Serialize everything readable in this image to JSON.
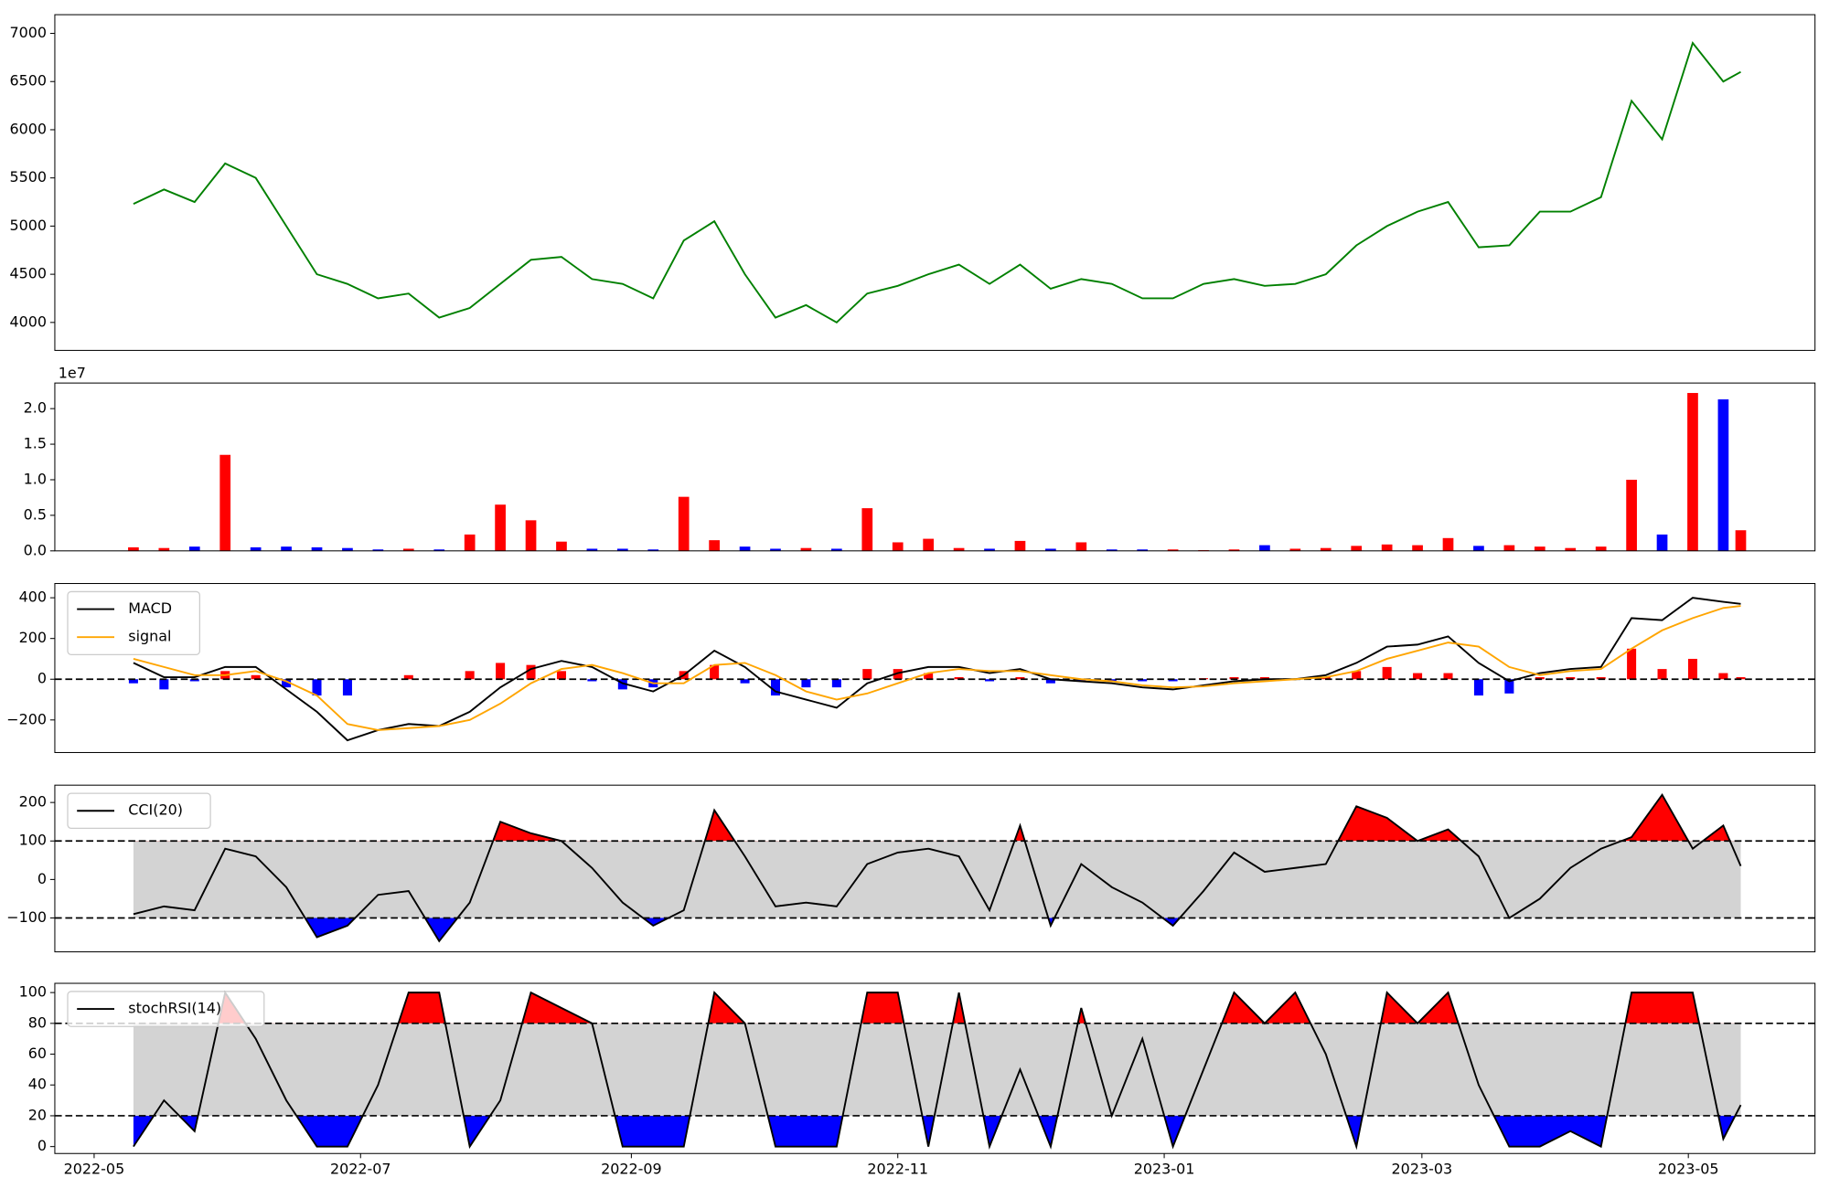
{
  "chart_data": [
    {
      "type": "line",
      "color": "#008000",
      "x": [
        "2022-05-10",
        "2022-05-17",
        "2022-05-24",
        "2022-05-31",
        "2022-06-07",
        "2022-06-14",
        "2022-06-21",
        "2022-06-28",
        "2022-07-05",
        "2022-07-12",
        "2022-07-19",
        "2022-07-26",
        "2022-08-02",
        "2022-08-09",
        "2022-08-16",
        "2022-08-23",
        "2022-08-30",
        "2022-09-06",
        "2022-09-13",
        "2022-09-20",
        "2022-09-27",
        "2022-10-04",
        "2022-10-11",
        "2022-10-18",
        "2022-10-25",
        "2022-11-01",
        "2022-11-08",
        "2022-11-15",
        "2022-11-22",
        "2022-11-29",
        "2022-12-06",
        "2022-12-13",
        "2022-12-20",
        "2022-12-27",
        "2023-01-03",
        "2023-01-10",
        "2023-01-17",
        "2023-01-24",
        "2023-01-31",
        "2023-02-07",
        "2023-02-14",
        "2023-02-21",
        "2023-02-28",
        "2023-03-07",
        "2023-03-14",
        "2023-03-21",
        "2023-03-28",
        "2023-04-04",
        "2023-04-11",
        "2023-04-18",
        "2023-04-25",
        "2023-05-02",
        "2023-05-09",
        "2023-05-13"
      ],
      "values": [
        5230,
        5380,
        5250,
        5650,
        5500,
        5000,
        4500,
        4400,
        4250,
        4300,
        4050,
        4150,
        4400,
        4650,
        4680,
        4450,
        4400,
        4250,
        4850,
        5050,
        4500,
        4050,
        4180,
        4000,
        4300,
        4380,
        4500,
        4600,
        4400,
        4600,
        4350,
        4450,
        4400,
        4250,
        4250,
        4400,
        4450,
        4380,
        4400,
        4500,
        4800,
        5000,
        5150,
        5250,
        4780,
        4800,
        5150,
        5150,
        5300,
        6300,
        5900,
        6900,
        6500,
        6600
      ],
      "xlim": [
        "2022-04-22",
        "2023-05-30"
      ],
      "ylim": [
        3710,
        7194
      ],
      "yticks": [
        4000,
        4500,
        5000,
        5500,
        6000,
        6500,
        7000
      ]
    },
    {
      "type": "bar",
      "offset_label": "1e7",
      "x": [
        "2022-05-10",
        "2022-05-17",
        "2022-05-24",
        "2022-05-31",
        "2022-06-07",
        "2022-06-14",
        "2022-06-21",
        "2022-06-28",
        "2022-07-05",
        "2022-07-12",
        "2022-07-19",
        "2022-07-26",
        "2022-08-02",
        "2022-08-09",
        "2022-08-16",
        "2022-08-23",
        "2022-08-30",
        "2022-09-06",
        "2022-09-13",
        "2022-09-20",
        "2022-09-27",
        "2022-10-04",
        "2022-10-11",
        "2022-10-18",
        "2022-10-25",
        "2022-11-01",
        "2022-11-08",
        "2022-11-15",
        "2022-11-22",
        "2022-11-29",
        "2022-12-06",
        "2022-12-13",
        "2022-12-20",
        "2022-12-27",
        "2023-01-03",
        "2023-01-10",
        "2023-01-17",
        "2023-01-24",
        "2023-01-31",
        "2023-02-07",
        "2023-02-14",
        "2023-02-21",
        "2023-02-28",
        "2023-03-07",
        "2023-03-14",
        "2023-03-21",
        "2023-03-28",
        "2023-04-04",
        "2023-04-11",
        "2023-04-18",
        "2023-04-25",
        "2023-05-02",
        "2023-05-09",
        "2023-05-13"
      ],
      "values": [
        500000,
        400000,
        600000,
        13500000,
        500000,
        600000,
        500000,
        400000,
        200000,
        300000,
        200000,
        2300000,
        6500000,
        4300000,
        1300000,
        300000,
        300000,
        200000,
        7600000,
        1500000,
        600000,
        300000,
        400000,
        300000,
        6000000,
        1200000,
        1700000,
        400000,
        300000,
        1400000,
        300000,
        1200000,
        200000,
        200000,
        200000,
        100000,
        200000,
        800000,
        300000,
        400000,
        700000,
        900000,
        800000,
        1800000,
        700000,
        800000,
        600000,
        400000,
        600000,
        10000000,
        2300000,
        22200000,
        21300000,
        2900000
      ],
      "colors": [
        "red",
        "red",
        "blue",
        "red",
        "blue",
        "blue",
        "blue",
        "blue",
        "blue",
        "red",
        "blue",
        "red",
        "red",
        "red",
        "red",
        "blue",
        "blue",
        "blue",
        "red",
        "red",
        "blue",
        "blue",
        "red",
        "blue",
        "red",
        "red",
        "red",
        "red",
        "blue",
        "red",
        "blue",
        "red",
        "blue",
        "blue",
        "red",
        "red",
        "red",
        "blue",
        "red",
        "red",
        "red",
        "red",
        "red",
        "red",
        "blue",
        "red",
        "red",
        "red",
        "red",
        "red",
        "blue",
        "red",
        "blue",
        "red"
      ],
      "xlim": [
        "2022-04-22",
        "2023-05-30"
      ],
      "ylim": [
        0,
        23600000
      ],
      "yticks": [
        {
          "value": 0,
          "label": "0.0"
        },
        {
          "value": 5000000,
          "label": "0.5"
        },
        {
          "value": 10000000,
          "label": "1.0"
        },
        {
          "value": 15000000,
          "label": "1.5"
        },
        {
          "value": 20000000,
          "label": "2.0"
        }
      ]
    },
    {
      "type": "macd",
      "legend": "upper left",
      "hline": 0,
      "x": [
        "2022-05-10",
        "2022-05-17",
        "2022-05-24",
        "2022-05-31",
        "2022-06-07",
        "2022-06-14",
        "2022-06-21",
        "2022-06-28",
        "2022-07-05",
        "2022-07-12",
        "2022-07-19",
        "2022-07-26",
        "2022-08-02",
        "2022-08-09",
        "2022-08-16",
        "2022-08-23",
        "2022-08-30",
        "2022-09-06",
        "2022-09-13",
        "2022-09-20",
        "2022-09-27",
        "2022-10-04",
        "2022-10-11",
        "2022-10-18",
        "2022-10-25",
        "2022-11-01",
        "2022-11-08",
        "2022-11-15",
        "2022-11-22",
        "2022-11-29",
        "2022-12-06",
        "2022-12-13",
        "2022-12-20",
        "2022-12-27",
        "2023-01-03",
        "2023-01-10",
        "2023-01-17",
        "2023-01-24",
        "2023-01-31",
        "2023-02-07",
        "2023-02-14",
        "2023-02-21",
        "2023-02-28",
        "2023-03-07",
        "2023-03-14",
        "2023-03-21",
        "2023-03-28",
        "2023-04-04",
        "2023-04-11",
        "2023-04-18",
        "2023-04-25",
        "2023-05-02",
        "2023-05-09",
        "2023-05-13"
      ],
      "series": [
        {
          "name": "MACD",
          "color": "#000000",
          "values": [
            80,
            10,
            10,
            60,
            60,
            -50,
            -160,
            -300,
            -250,
            -220,
            -230,
            -160,
            -40,
            50,
            90,
            60,
            -20,
            -60,
            20,
            140,
            60,
            -60,
            -100,
            -140,
            -20,
            30,
            60,
            60,
            30,
            50,
            0,
            -10,
            -20,
            -40,
            -50,
            -30,
            -10,
            0,
            0,
            20,
            80,
            160,
            170,
            210,
            80,
            -10,
            30,
            50,
            60,
            300,
            290,
            400,
            380,
            370
          ]
        },
        {
          "name": "signal",
          "color": "#ffa500",
          "values": [
            100,
            60,
            20,
            20,
            40,
            -10,
            -80,
            -220,
            -250,
            -240,
            -230,
            -200,
            -120,
            -20,
            50,
            70,
            30,
            -20,
            -20,
            70,
            80,
            20,
            -60,
            -100,
            -70,
            -20,
            30,
            50,
            40,
            40,
            20,
            0,
            -10,
            -30,
            -40,
            -35,
            -20,
            -10,
            0,
            10,
            40,
            100,
            140,
            180,
            160,
            60,
            20,
            40,
            50,
            150,
            240,
            300,
            350,
            360
          ]
        }
      ],
      "histogram": {
        "pos_color": "#ff0000",
        "neg_color": "#0000ff",
        "values": [
          -20,
          -50,
          -10,
          40,
          20,
          -40,
          -80,
          -80,
          0,
          20,
          0,
          40,
          80,
          70,
          40,
          -10,
          -50,
          -40,
          40,
          70,
          -20,
          -80,
          -40,
          -40,
          50,
          50,
          30,
          10,
          -10,
          10,
          -20,
          -10,
          -10,
          -10,
          -10,
          5,
          10,
          10,
          0,
          10,
          40,
          60,
          30,
          30,
          -80,
          -70,
          10,
          10,
          10,
          150,
          50,
          100,
          30,
          10
        ]
      },
      "xlim": [
        "2022-04-22",
        "2023-05-30"
      ],
      "ylim": [
        -360,
        470
      ],
      "yticks": [
        {
          "value": -200,
          "label": "−200"
        },
        0,
        200,
        400
      ]
    },
    {
      "type": "oscillator",
      "legend": "upper left",
      "thresholds": [
        -100,
        100
      ],
      "band_color": "#d3d3d3",
      "upper_color": "#ff0000",
      "lower_color": "#0000ff",
      "x": [
        "2022-05-10",
        "2022-05-17",
        "2022-05-24",
        "2022-05-31",
        "2022-06-07",
        "2022-06-14",
        "2022-06-21",
        "2022-06-28",
        "2022-07-05",
        "2022-07-12",
        "2022-07-19",
        "2022-07-26",
        "2022-08-02",
        "2022-08-09",
        "2022-08-16",
        "2022-08-23",
        "2022-08-30",
        "2022-09-06",
        "2022-09-13",
        "2022-09-20",
        "2022-09-27",
        "2022-10-04",
        "2022-10-11",
        "2022-10-18",
        "2022-10-25",
        "2022-11-01",
        "2022-11-08",
        "2022-11-15",
        "2022-11-22",
        "2022-11-29",
        "2022-12-06",
        "2022-12-13",
        "2022-12-20",
        "2022-12-27",
        "2023-01-03",
        "2023-01-10",
        "2023-01-17",
        "2023-01-24",
        "2023-01-31",
        "2023-02-07",
        "2023-02-14",
        "2023-02-21",
        "2023-02-28",
        "2023-03-07",
        "2023-03-14",
        "2023-03-21",
        "2023-03-28",
        "2023-04-04",
        "2023-04-11",
        "2023-04-18",
        "2023-04-25",
        "2023-05-02",
        "2023-05-09",
        "2023-05-13"
      ],
      "series": [
        {
          "name": "CCI(20)",
          "color": "#000000",
          "values": [
            -90,
            -70,
            -80,
            80,
            60,
            -20,
            -150,
            -120,
            -40,
            -30,
            -160,
            -60,
            150,
            120,
            100,
            30,
            -60,
            -120,
            -80,
            180,
            60,
            -70,
            -60,
            -70,
            40,
            70,
            80,
            60,
            -80,
            140,
            -120,
            40,
            -20,
            -60,
            -120,
            -30,
            70,
            20,
            30,
            40,
            190,
            160,
            100,
            130,
            60,
            -100,
            -50,
            30,
            80,
            110,
            220,
            80,
            140,
            35
          ]
        }
      ],
      "xlim": [
        "2022-04-22",
        "2023-05-30"
      ],
      "ylim": [
        -188,
        245
      ],
      "yticks": [
        {
          "value": -100,
          "label": "−100"
        },
        0,
        100,
        200
      ]
    },
    {
      "type": "oscillator",
      "legend": "upper left",
      "thresholds": [
        20,
        80
      ],
      "band_color": "#d3d3d3",
      "upper_color": "#ff0000",
      "lower_color": "#0000ff",
      "x": [
        "2022-05-10",
        "2022-05-17",
        "2022-05-24",
        "2022-05-31",
        "2022-06-07",
        "2022-06-14",
        "2022-06-21",
        "2022-06-28",
        "2022-07-05",
        "2022-07-12",
        "2022-07-19",
        "2022-07-26",
        "2022-08-02",
        "2022-08-09",
        "2022-08-16",
        "2022-08-23",
        "2022-08-30",
        "2022-09-06",
        "2022-09-13",
        "2022-09-20",
        "2022-09-27",
        "2022-10-04",
        "2022-10-11",
        "2022-10-18",
        "2022-10-25",
        "2022-11-01",
        "2022-11-08",
        "2022-11-15",
        "2022-11-22",
        "2022-11-29",
        "2022-12-06",
        "2022-12-13",
        "2022-12-20",
        "2022-12-27",
        "2023-01-03",
        "2023-01-10",
        "2023-01-17",
        "2023-01-24",
        "2023-01-31",
        "2023-02-07",
        "2023-02-14",
        "2023-02-21",
        "2023-02-28",
        "2023-03-07",
        "2023-03-14",
        "2023-03-21",
        "2023-03-28",
        "2023-04-04",
        "2023-04-11",
        "2023-04-18",
        "2023-04-25",
        "2023-05-02",
        "2023-05-09",
        "2023-05-13"
      ],
      "series": [
        {
          "name": "stochRSI(14)",
          "color": "#000000",
          "values": [
            0,
            30,
            10,
            100,
            70,
            30,
            0,
            0,
            40,
            100,
            100,
            0,
            30,
            100,
            90,
            80,
            0,
            0,
            0,
            100,
            80,
            0,
            0,
            0,
            100,
            100,
            0,
            100,
            0,
            50,
            0,
            90,
            20,
            70,
            0,
            50,
            100,
            80,
            100,
            60,
            0,
            100,
            80,
            100,
            40,
            0,
            0,
            10,
            0,
            100,
            100,
            100,
            5,
            27
          ]
        }
      ],
      "xlim": [
        "2022-04-22",
        "2023-05-30"
      ],
      "ylim": [
        -4.5,
        106
      ],
      "yticks": [
        0,
        20,
        40,
        60,
        80,
        100
      ],
      "xticks": [
        {
          "value": "2022-05-01",
          "label": "2022-05"
        },
        {
          "value": "2022-07-01",
          "label": "2022-07"
        },
        {
          "value": "2022-09-01",
          "label": "2022-09"
        },
        {
          "value": "2022-11-01",
          "label": "2022-11"
        },
        {
          "value": "2023-01-01",
          "label": "2023-01"
        },
        {
          "value": "2023-03-01",
          "label": "2023-03"
        },
        {
          "value": "2023-05-01",
          "label": "2023-05"
        }
      ]
    }
  ]
}
